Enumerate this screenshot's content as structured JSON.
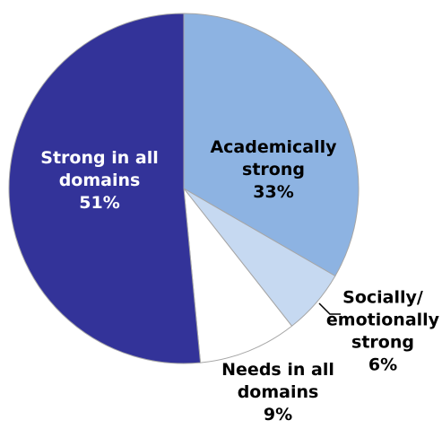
{
  "chart_data": {
    "type": "pie",
    "title": "",
    "slices": [
      {
        "label_lines": [
          "Academically",
          "strong"
        ],
        "label": "Academically strong",
        "value": 33,
        "value_label": "33%",
        "color": "#8db3e2",
        "label_color": "#000000"
      },
      {
        "label_lines": [
          "Socially/",
          "emotionally",
          "strong"
        ],
        "label": "Socially/ emotionally strong",
        "value": 6,
        "value_label": "6%",
        "color": "#c6d9f1",
        "label_color": "#000000"
      },
      {
        "label_lines": [
          "Needs in all",
          "domains"
        ],
        "label": "Needs in all domains",
        "value": 9,
        "value_label": "9%",
        "color": "#ffffff",
        "label_color": "#000000"
      },
      {
        "label_lines": [
          "Strong in all",
          "domains"
        ],
        "label": "Strong in all domains",
        "value": 51,
        "value_label": "51%",
        "color": "#333399",
        "label_color": "#ffffff"
      }
    ],
    "start_angle_deg": 0,
    "direction": "clockwise",
    "slice_border_color": "#a6a6a6",
    "legend": "none"
  }
}
